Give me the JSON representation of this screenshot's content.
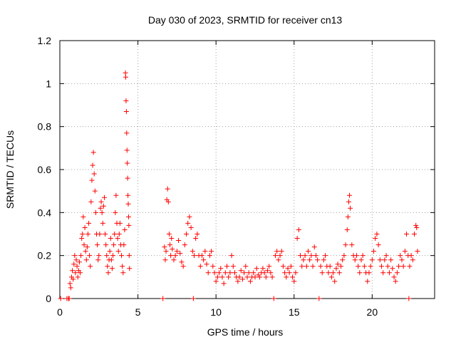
{
  "chart_data": {
    "type": "scatter",
    "title": "Day 030 of 2023, SRMTID for receiver cn13",
    "xlabel": "GPS time / hours",
    "ylabel": "SRMTID / TECUs",
    "xlim": [
      0,
      24
    ],
    "ylim": [
      0,
      1.2
    ],
    "xticks": [
      0,
      5,
      10,
      15,
      20
    ],
    "xtick_labels": [
      "0",
      "5",
      "10",
      "15",
      "20"
    ],
    "yticks": [
      0,
      0.2,
      0.4,
      0.6,
      0.8,
      1.0,
      1.2
    ],
    "ytick_labels": [
      "0",
      "0.2",
      "0.4",
      "0.6",
      "0.8",
      "1",
      "1.2"
    ],
    "grid": true,
    "marker": "+",
    "series": [
      {
        "name": "cn13",
        "color": "#ff0000",
        "points": [
          [
            0.05,
            0.0
          ],
          [
            0.45,
            0.0
          ],
          [
            0.55,
            0.0
          ],
          [
            0.6,
            0.0
          ],
          [
            0.65,
            0.07
          ],
          [
            0.7,
            0.05
          ],
          [
            0.75,
            0.1
          ],
          [
            0.8,
            0.13
          ],
          [
            0.85,
            0.09
          ],
          [
            0.9,
            0.16
          ],
          [
            0.95,
            0.2
          ],
          [
            1.0,
            0.12
          ],
          [
            1.05,
            0.18
          ],
          [
            1.1,
            0.15
          ],
          [
            1.15,
            0.1
          ],
          [
            1.2,
            0.13
          ],
          [
            1.25,
            0.17
          ],
          [
            1.3,
            0.12
          ],
          [
            1.35,
            0.2
          ],
          [
            1.4,
            0.28
          ],
          [
            1.45,
            0.3
          ],
          [
            1.5,
            0.38
          ],
          [
            1.55,
            0.25
          ],
          [
            1.6,
            0.33
          ],
          [
            1.65,
            0.22
          ],
          [
            1.7,
            0.18
          ],
          [
            1.75,
            0.24
          ],
          [
            1.8,
            0.3
          ],
          [
            1.85,
            0.35
          ],
          [
            1.9,
            0.2
          ],
          [
            1.95,
            0.15
          ],
          [
            2.0,
            0.45
          ],
          [
            2.05,
            0.55
          ],
          [
            2.1,
            0.62
          ],
          [
            2.15,
            0.68
          ],
          [
            2.2,
            0.58
          ],
          [
            2.25,
            0.5
          ],
          [
            2.3,
            0.4
          ],
          [
            2.35,
            0.3
          ],
          [
            2.4,
            0.25
          ],
          [
            2.45,
            0.18
          ],
          [
            2.5,
            0.2
          ],
          [
            2.55,
            0.3
          ],
          [
            2.6,
            0.42
          ],
          [
            2.65,
            0.45
          ],
          [
            2.7,
            0.4
          ],
          [
            2.75,
            0.35
          ],
          [
            2.8,
            0.43
          ],
          [
            2.85,
            0.47
          ],
          [
            2.9,
            0.3
          ],
          [
            2.95,
            0.25
          ],
          [
            3.0,
            0.2
          ],
          [
            3.05,
            0.15
          ],
          [
            3.1,
            0.12
          ],
          [
            3.15,
            0.18
          ],
          [
            3.2,
            0.22
          ],
          [
            3.25,
            0.28
          ],
          [
            3.3,
            0.18
          ],
          [
            3.35,
            0.14
          ],
          [
            3.4,
            0.2
          ],
          [
            3.45,
            0.25
          ],
          [
            3.5,
            0.3
          ],
          [
            3.55,
            0.4
          ],
          [
            3.6,
            0.48
          ],
          [
            3.65,
            0.35
          ],
          [
            3.7,
            0.28
          ],
          [
            3.75,
            0.22
          ],
          [
            3.8,
            0.3
          ],
          [
            3.85,
            0.35
          ],
          [
            3.9,
            0.25
          ],
          [
            3.95,
            0.2
          ],
          [
            4.0,
            0.15
          ],
          [
            4.05,
            0.12
          ],
          [
            4.1,
            0.25
          ],
          [
            4.15,
            0.32
          ],
          [
            4.2,
            1.05
          ],
          [
            4.22,
            1.03
          ],
          [
            4.24,
            0.92
          ],
          [
            4.26,
            0.87
          ],
          [
            4.28,
            0.77
          ],
          [
            4.3,
            0.69
          ],
          [
            4.32,
            0.63
          ],
          [
            4.34,
            0.56
          ],
          [
            4.36,
            0.48
          ],
          [
            4.38,
            0.44
          ],
          [
            4.4,
            0.38
          ],
          [
            4.42,
            0.34
          ],
          [
            4.44,
            0.2
          ],
          [
            4.46,
            0.14
          ],
          [
            6.6,
            0.0
          ],
          [
            6.7,
            0.24
          ],
          [
            6.75,
            0.18
          ],
          [
            6.8,
            0.22
          ],
          [
            6.85,
            0.46
          ],
          [
            6.9,
            0.51
          ],
          [
            6.95,
            0.45
          ],
          [
            7.0,
            0.3
          ],
          [
            7.05,
            0.25
          ],
          [
            7.1,
            0.2
          ],
          [
            7.15,
            0.28
          ],
          [
            7.2,
            0.23
          ],
          [
            7.3,
            0.18
          ],
          [
            7.4,
            0.2
          ],
          [
            7.5,
            0.22
          ],
          [
            7.6,
            0.27
          ],
          [
            7.7,
            0.21
          ],
          [
            7.8,
            0.17
          ],
          [
            7.9,
            0.15
          ],
          [
            8.0,
            0.25
          ],
          [
            8.1,
            0.3
          ],
          [
            8.2,
            0.35
          ],
          [
            8.3,
            0.38
          ],
          [
            8.4,
            0.33
          ],
          [
            8.5,
            0.22
          ],
          [
            8.55,
            0.0
          ],
          [
            8.6,
            0.2
          ],
          [
            8.7,
            0.28
          ],
          [
            8.8,
            0.3
          ],
          [
            8.9,
            0.2
          ],
          [
            9.0,
            0.15
          ],
          [
            9.1,
            0.2
          ],
          [
            9.2,
            0.18
          ],
          [
            9.3,
            0.22
          ],
          [
            9.4,
            0.16
          ],
          [
            9.5,
            0.12
          ],
          [
            9.6,
            0.2
          ],
          [
            9.7,
            0.22
          ],
          [
            9.8,
            0.15
          ],
          [
            9.9,
            0.12
          ],
          [
            10.0,
            0.08
          ],
          [
            10.1,
            0.1
          ],
          [
            10.2,
            0.12
          ],
          [
            10.3,
            0.14
          ],
          [
            10.4,
            0.1
          ],
          [
            10.5,
            0.07
          ],
          [
            10.6,
            0.12
          ],
          [
            10.7,
            0.15
          ],
          [
            10.8,
            0.1
          ],
          [
            10.9,
            0.12
          ],
          [
            11.0,
            0.2
          ],
          [
            11.1,
            0.15
          ],
          [
            11.2,
            0.12
          ],
          [
            11.3,
            0.1
          ],
          [
            11.4,
            0.08
          ],
          [
            11.5,
            0.1
          ],
          [
            11.6,
            0.13
          ],
          [
            11.7,
            0.09
          ],
          [
            11.8,
            0.12
          ],
          [
            11.9,
            0.15
          ],
          [
            12.0,
            0.1
          ],
          [
            12.1,
            0.12
          ],
          [
            12.2,
            0.08
          ],
          [
            12.3,
            0.1
          ],
          [
            12.4,
            0.12
          ],
          [
            12.5,
            0.1
          ],
          [
            12.6,
            0.14
          ],
          [
            12.7,
            0.11
          ],
          [
            12.8,
            0.1
          ],
          [
            12.9,
            0.12
          ],
          [
            13.0,
            0.14
          ],
          [
            13.1,
            0.12
          ],
          [
            13.2,
            0.1
          ],
          [
            13.3,
            0.13
          ],
          [
            13.4,
            0.15
          ],
          [
            13.5,
            0.12
          ],
          [
            13.6,
            0.1
          ],
          [
            13.7,
            0.0
          ],
          [
            13.8,
            0.2
          ],
          [
            13.9,
            0.22
          ],
          [
            14.0,
            0.18
          ],
          [
            14.1,
            0.2
          ],
          [
            14.2,
            0.22
          ],
          [
            14.3,
            0.15
          ],
          [
            14.4,
            0.12
          ],
          [
            14.5,
            0.1
          ],
          [
            14.6,
            0.14
          ],
          [
            14.7,
            0.12
          ],
          [
            14.8,
            0.15
          ],
          [
            14.9,
            0.1
          ],
          [
            15.0,
            0.08
          ],
          [
            15.1,
            0.12
          ],
          [
            15.2,
            0.28
          ],
          [
            15.3,
            0.32
          ],
          [
            15.4,
            0.2
          ],
          [
            15.5,
            0.15
          ],
          [
            15.6,
            0.18
          ],
          [
            15.7,
            0.2
          ],
          [
            15.8,
            0.15
          ],
          [
            15.9,
            0.22
          ],
          [
            16.0,
            0.18
          ],
          [
            16.1,
            0.2
          ],
          [
            16.2,
            0.15
          ],
          [
            16.3,
            0.24
          ],
          [
            16.4,
            0.2
          ],
          [
            16.5,
            0.18
          ],
          [
            16.6,
            0.0
          ],
          [
            16.7,
            0.15
          ],
          [
            16.8,
            0.12
          ],
          [
            16.9,
            0.18
          ],
          [
            17.0,
            0.2
          ],
          [
            17.1,
            0.15
          ],
          [
            17.2,
            0.12
          ],
          [
            17.3,
            0.15
          ],
          [
            17.4,
            0.1
          ],
          [
            17.5,
            0.12
          ],
          [
            17.6,
            0.08
          ],
          [
            17.7,
            0.14
          ],
          [
            17.8,
            0.16
          ],
          [
            17.9,
            0.12
          ],
          [
            18.0,
            0.15
          ],
          [
            18.1,
            0.18
          ],
          [
            18.2,
            0.2
          ],
          [
            18.3,
            0.25
          ],
          [
            18.4,
            0.32
          ],
          [
            18.45,
            0.38
          ],
          [
            18.5,
            0.45
          ],
          [
            18.55,
            0.48
          ],
          [
            18.6,
            0.42
          ],
          [
            18.7,
            0.25
          ],
          [
            18.8,
            0.2
          ],
          [
            18.9,
            0.18
          ],
          [
            19.0,
            0.2
          ],
          [
            19.1,
            0.15
          ],
          [
            19.2,
            0.12
          ],
          [
            19.3,
            0.18
          ],
          [
            19.4,
            0.2
          ],
          [
            19.5,
            0.15
          ],
          [
            19.6,
            0.12
          ],
          [
            19.7,
            0.08
          ],
          [
            19.8,
            0.12
          ],
          [
            19.9,
            0.15
          ],
          [
            20.0,
            0.18
          ],
          [
            20.1,
            0.22
          ],
          [
            20.2,
            0.28
          ],
          [
            20.3,
            0.3
          ],
          [
            20.4,
            0.25
          ],
          [
            20.5,
            0.18
          ],
          [
            20.6,
            0.15
          ],
          [
            20.7,
            0.12
          ],
          [
            20.8,
            0.18
          ],
          [
            20.9,
            0.2
          ],
          [
            21.0,
            0.15
          ],
          [
            21.1,
            0.12
          ],
          [
            21.2,
            0.18
          ],
          [
            21.3,
            0.14
          ],
          [
            21.4,
            0.1
          ],
          [
            21.5,
            0.08
          ],
          [
            21.6,
            0.12
          ],
          [
            21.7,
            0.15
          ],
          [
            21.8,
            0.2
          ],
          [
            21.9,
            0.18
          ],
          [
            22.0,
            0.15
          ],
          [
            22.1,
            0.22
          ],
          [
            22.2,
            0.3
          ],
          [
            22.3,
            0.2
          ],
          [
            22.35,
            0.0
          ],
          [
            22.4,
            0.15
          ],
          [
            22.5,
            0.2
          ],
          [
            22.6,
            0.18
          ],
          [
            22.7,
            0.3
          ],
          [
            22.8,
            0.34
          ],
          [
            22.85,
            0.33
          ],
          [
            22.9,
            0.22
          ]
        ]
      }
    ]
  }
}
